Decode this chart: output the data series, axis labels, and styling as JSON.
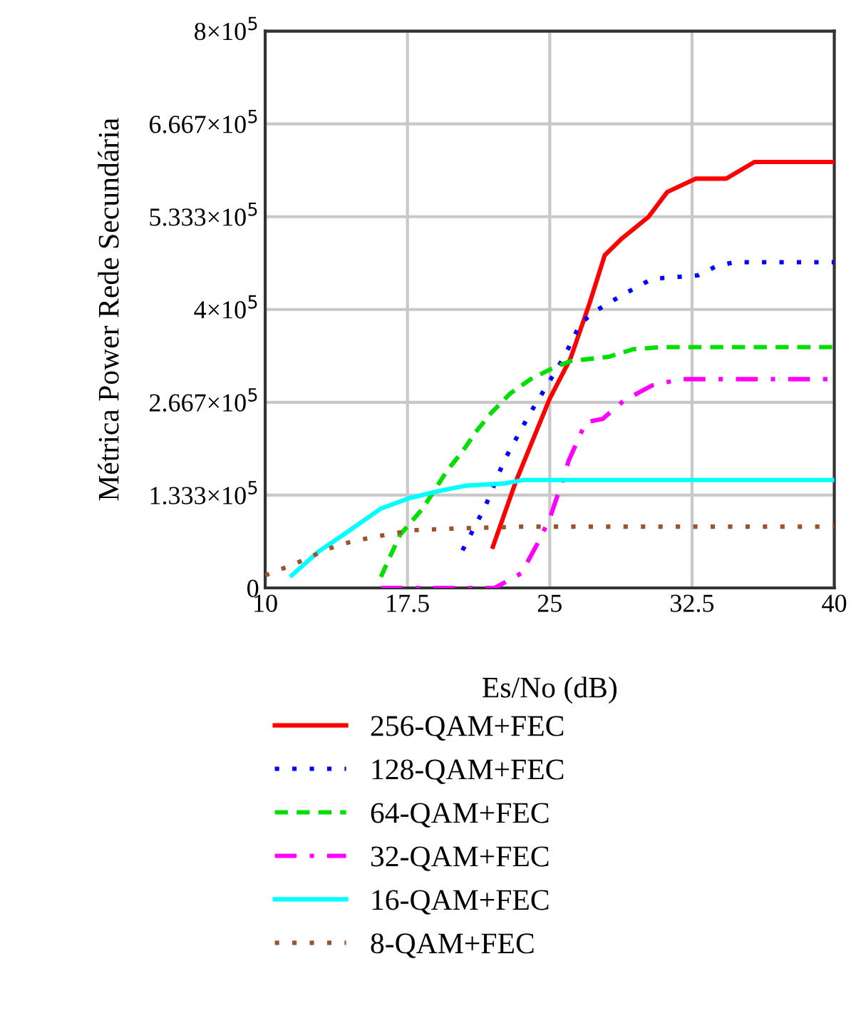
{
  "chart_data": {
    "type": "line",
    "xlabel": "Es/No (dB)",
    "ylabel": "Métrica Power Rede Secundária",
    "xlim": [
      10,
      40
    ],
    "xticks": [
      10,
      17.5,
      25,
      32.5,
      40
    ],
    "ylim": [
      0,
      800000
    ],
    "yticks": [
      0,
      {
        "value": 133333,
        "label": "1.333×10$^{5}$"
      },
      {
        "value": 266667,
        "label": "2.667×10$^{5}$"
      },
      {
        "value": 400000,
        "label": "4×10$^{5}$"
      },
      {
        "value": 533333,
        "label": "5.333×10$^{5}$"
      },
      {
        "value": 666667,
        "label": "6.667×10$^{5}$"
      },
      {
        "value": 800000,
        "label": "8×10$^{5}$"
      }
    ],
    "grid": true,
    "legend": "bottom",
    "series": [
      {
        "name": "256-QAM+FEC",
        "color": "#ff0000",
        "line_style": "solid",
        "x": [
          22.0,
          23.2,
          25.0,
          26.1,
          27.1,
          27.9,
          28.8,
          30.2,
          31.2,
          32.7,
          34.3,
          35.8,
          40
        ],
        "values": [
          59000,
          152000,
          272000,
          330000,
          409000,
          478000,
          502000,
          533000,
          569000,
          588000,
          588000,
          612000,
          612000
        ]
      },
      {
        "name": "128-QAM+FEC",
        "color": "#0000ff",
        "line_style": "dotted",
        "x": [
          20.4,
          21.6,
          22.6,
          23.9,
          24.9,
          25.8,
          26.6,
          27.3,
          28.9,
          30.4,
          32.8,
          33.7,
          34.7,
          40
        ],
        "values": [
          54000,
          117000,
          183000,
          248000,
          293000,
          334000,
          379000,
          396000,
          422000,
          444000,
          449000,
          461000,
          468000,
          468000
        ]
      },
      {
        "name": "64-QAM+FEC",
        "color": "#00e000",
        "line_style": "dashed",
        "x": [
          16.1,
          17.1,
          18.3,
          19.6,
          20.4,
          21.1,
          21.9,
          22.9,
          24.0,
          25.1,
          26.1,
          28.1,
          29.4,
          30.9,
          40
        ],
        "values": [
          16000,
          76000,
          114000,
          169000,
          196000,
          224000,
          251000,
          279000,
          300000,
          315000,
          326000,
          332000,
          343000,
          346000,
          346000
        ]
      },
      {
        "name": "32-QAM+FEC",
        "color": "#ff00ff",
        "line_style": "dashdot",
        "x": [
          16.1,
          22.1,
          23.5,
          24.4,
          25.0,
          25.6,
          26.0,
          26.9,
          27.8,
          28.9,
          30.4,
          31.9,
          40
        ],
        "values": [
          0,
          0,
          21000,
          66000,
          100000,
          148000,
          183000,
          238000,
          243000,
          269000,
          291000,
          300000,
          300000
        ]
      },
      {
        "name": "16-QAM+FEC",
        "color": "#00ffff",
        "line_style": "solid",
        "x": [
          11.4,
          12.8,
          14.1,
          16.1,
          17.6,
          19.1,
          20.6,
          22.6,
          23.6,
          40
        ],
        "values": [
          18000,
          52000,
          76000,
          114000,
          129000,
          139000,
          147000,
          150000,
          155000,
          155000
        ]
      },
      {
        "name": "8-QAM+FEC",
        "color": "#a0522d",
        "line_style": "dotted",
        "x": [
          10,
          11.6,
          13.3,
          14.6,
          16.3,
          17.8,
          19.6,
          23.4,
          40
        ],
        "values": [
          18000,
          35000,
          56000,
          67000,
          76000,
          83000,
          85000,
          88000,
          88000
        ]
      }
    ]
  }
}
